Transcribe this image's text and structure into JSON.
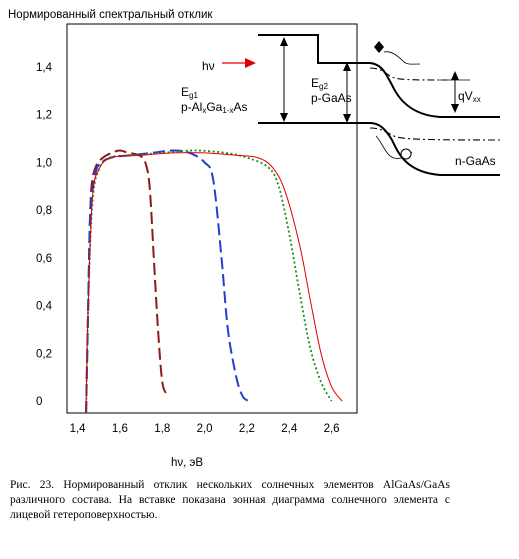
{
  "chart_data": {
    "type": "line",
    "title": "Нормированный спектральный отклик",
    "xlabel": "hν, эВ",
    "ylabel": "",
    "xlim": [
      1.35,
      2.72
    ],
    "ylim": [
      -0.05,
      1.58
    ],
    "x_ticks": [
      "1,4",
      "1,6",
      "1,8",
      "2,0",
      "2,2",
      "2,4",
      "2,6"
    ],
    "x_tick_values": [
      1.4,
      1.6,
      1.8,
      2.0,
      2.2,
      2.4,
      2.6
    ],
    "y_ticks": [
      "0",
      "0,2",
      "0,4",
      "0,6",
      "0,8",
      "1,0",
      "1,2",
      "1,4"
    ],
    "y_tick_values": [
      0,
      0.2,
      0.4,
      0.6,
      0.8,
      1.0,
      1.2,
      1.4
    ],
    "grid": false,
    "legend": "none",
    "series": [
      {
        "color": "#8b1a1a",
        "dash": "long-dash",
        "points": [
          [
            1.44,
            -0.05
          ],
          [
            1.45,
            0.4
          ],
          [
            1.46,
            0.8
          ],
          [
            1.47,
            0.93
          ],
          [
            1.49,
            0.99
          ],
          [
            1.52,
            1.02
          ],
          [
            1.56,
            1.04
          ],
          [
            1.6,
            1.05
          ],
          [
            1.64,
            1.04
          ],
          [
            1.69,
            1.03
          ],
          [
            1.72,
            1.0
          ],
          [
            1.74,
            0.9
          ],
          [
            1.76,
            0.6
          ],
          [
            1.78,
            0.3
          ],
          [
            1.8,
            0.08
          ],
          [
            1.82,
            0.03
          ]
        ]
      },
      {
        "color": "#1e3fd0",
        "dash": "long-dash",
        "points": [
          [
            1.44,
            -0.05
          ],
          [
            1.45,
            0.4
          ],
          [
            1.46,
            0.8
          ],
          [
            1.48,
            0.93
          ],
          [
            1.5,
            0.99
          ],
          [
            1.56,
            1.02
          ],
          [
            1.65,
            1.03
          ],
          [
            1.75,
            1.04
          ],
          [
            1.85,
            1.05
          ],
          [
            1.93,
            1.04
          ],
          [
            2.0,
            1.0
          ],
          [
            2.04,
            0.93
          ],
          [
            2.08,
            0.6
          ],
          [
            2.11,
            0.3
          ],
          [
            2.15,
            0.1
          ],
          [
            2.18,
            0.02
          ],
          [
            2.21,
            0.0
          ]
        ]
      },
      {
        "color": "#1e8a1e",
        "dash": "dotted",
        "points": [
          [
            1.44,
            -0.05
          ],
          [
            1.45,
            0.4
          ],
          [
            1.47,
            0.83
          ],
          [
            1.5,
            0.97
          ],
          [
            1.55,
            1.02
          ],
          [
            1.65,
            1.03
          ],
          [
            1.8,
            1.04
          ],
          [
            1.95,
            1.05
          ],
          [
            2.1,
            1.04
          ],
          [
            2.2,
            1.02
          ],
          [
            2.3,
            0.98
          ],
          [
            2.35,
            0.9
          ],
          [
            2.4,
            0.7
          ],
          [
            2.45,
            0.45
          ],
          [
            2.5,
            0.22
          ],
          [
            2.55,
            0.08
          ],
          [
            2.6,
            0.0
          ]
        ]
      },
      {
        "color": "#e00000",
        "dash": "solid",
        "points": [
          [
            1.44,
            -0.05
          ],
          [
            1.45,
            0.4
          ],
          [
            1.47,
            0.85
          ],
          [
            1.5,
            0.97
          ],
          [
            1.56,
            1.02
          ],
          [
            1.7,
            1.03
          ],
          [
            1.85,
            1.04
          ],
          [
            2.0,
            1.04
          ],
          [
            2.15,
            1.03
          ],
          [
            2.25,
            1.02
          ],
          [
            2.32,
            0.98
          ],
          [
            2.38,
            0.88
          ],
          [
            2.45,
            0.65
          ],
          [
            2.5,
            0.42
          ],
          [
            2.55,
            0.2
          ],
          [
            2.6,
            0.06
          ],
          [
            2.65,
            0.0
          ]
        ]
      }
    ],
    "inset": {
      "labels": {
        "hv": "hν",
        "eg1": "E",
        "eg1_sub": "g1",
        "eg1_material": "p-Al",
        "eg1_material_sub": "x",
        "eg1_material_2": "Ga",
        "eg1_material_sub_2": "1-x",
        "eg1_material_3": "As",
        "eg2": "E",
        "eg2_sub": "g2",
        "eg2_material": "p-GaAs",
        "vxx": "qV",
        "vxx_sub": "хх",
        "ngaas": "n-GaAs"
      }
    }
  },
  "caption": "Рис. 23. Нормированный отклик нескольких солнечных элементов AlGaAs/GaAs различного состава. На вставке показана зонная диаграмма солнечного элемента с лицевой гетероповерхностью."
}
